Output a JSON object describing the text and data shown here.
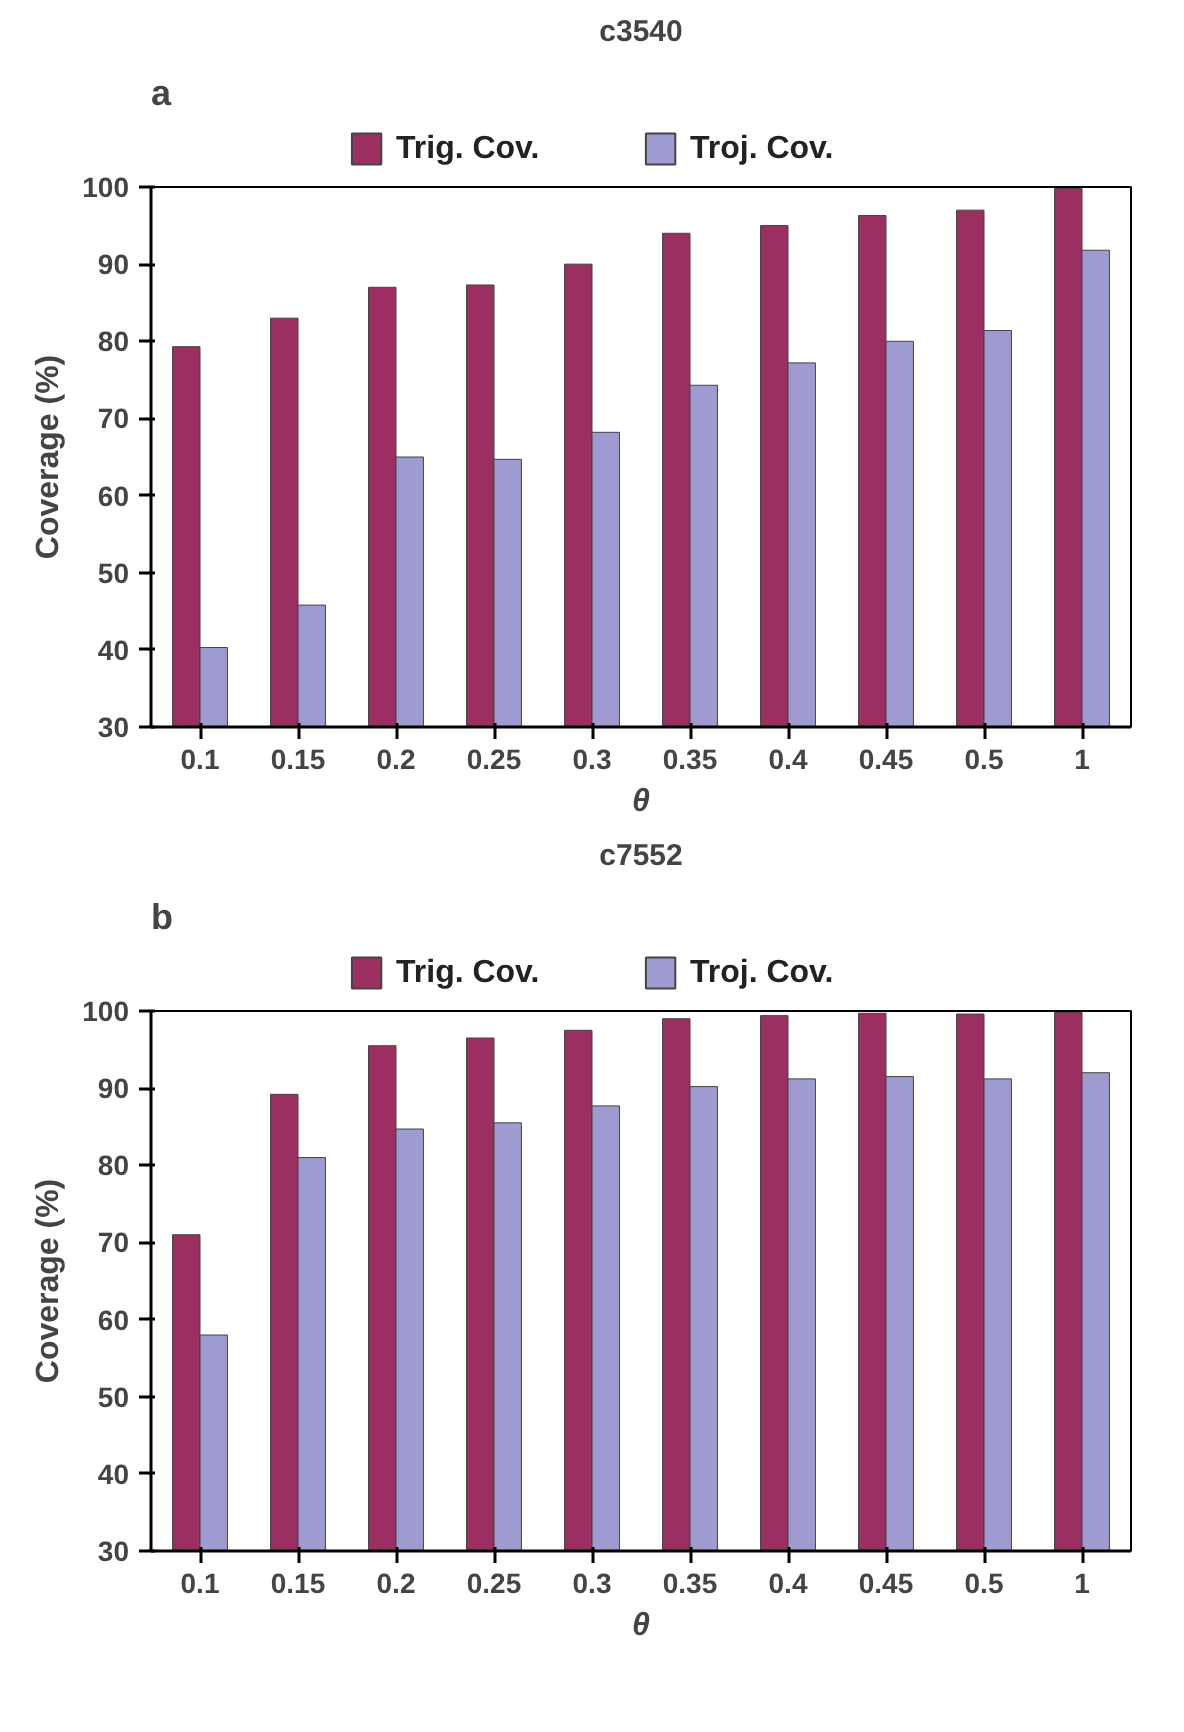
{
  "chart_data": [
    {
      "type": "bar",
      "title": "c3540",
      "xlabel": "θ",
      "ylabel": "Coverage (%)",
      "annotations": [
        "a"
      ],
      "categories": [
        "0.1",
        "0.15",
        "0.2",
        "0.25",
        "0.3",
        "0.35",
        "0.4",
        "0.45",
        "0.5",
        "1"
      ],
      "series": [
        {
          "name": "Trig. Cov.",
          "color": "#9b2f62",
          "values": [
            79.3,
            83,
            87,
            87.3,
            90,
            94,
            95,
            96.3,
            97,
            99.8
          ]
        },
        {
          "name": "Troj. Cov.",
          "color": "#9d9bd0",
          "values": [
            40.3,
            45.8,
            65,
            64.7,
            68.2,
            74.3,
            77.2,
            80,
            81.4,
            91.8
          ]
        }
      ],
      "ylim": [
        30,
        100
      ],
      "yticks": [
        30,
        40,
        50,
        60,
        70,
        80,
        90,
        100
      ],
      "grid": false,
      "legend": "top"
    },
    {
      "type": "bar",
      "title": "c7552",
      "xlabel": "θ",
      "ylabel": "Coverage (%)",
      "annotations": [
        "b"
      ],
      "categories": [
        "0.1",
        "0.15",
        "0.2",
        "0.25",
        "0.3",
        "0.35",
        "0.4",
        "0.45",
        "0.5",
        "1"
      ],
      "series": [
        {
          "name": "Trig. Cov.",
          "color": "#9b2f62",
          "values": [
            71,
            89.2,
            95.5,
            96.5,
            97.5,
            99,
            99.4,
            99.7,
            99.6,
            99.8
          ]
        },
        {
          "name": "Troj. Cov.",
          "color": "#9d9bd0",
          "values": [
            58,
            81,
            84.7,
            85.5,
            87.7,
            90.2,
            91.2,
            91.5,
            91.2,
            92
          ]
        }
      ],
      "ylim": [
        30,
        100
      ],
      "yticks": [
        30,
        40,
        50,
        60,
        70,
        80,
        90,
        100
      ],
      "grid": false,
      "legend": "top"
    }
  ]
}
